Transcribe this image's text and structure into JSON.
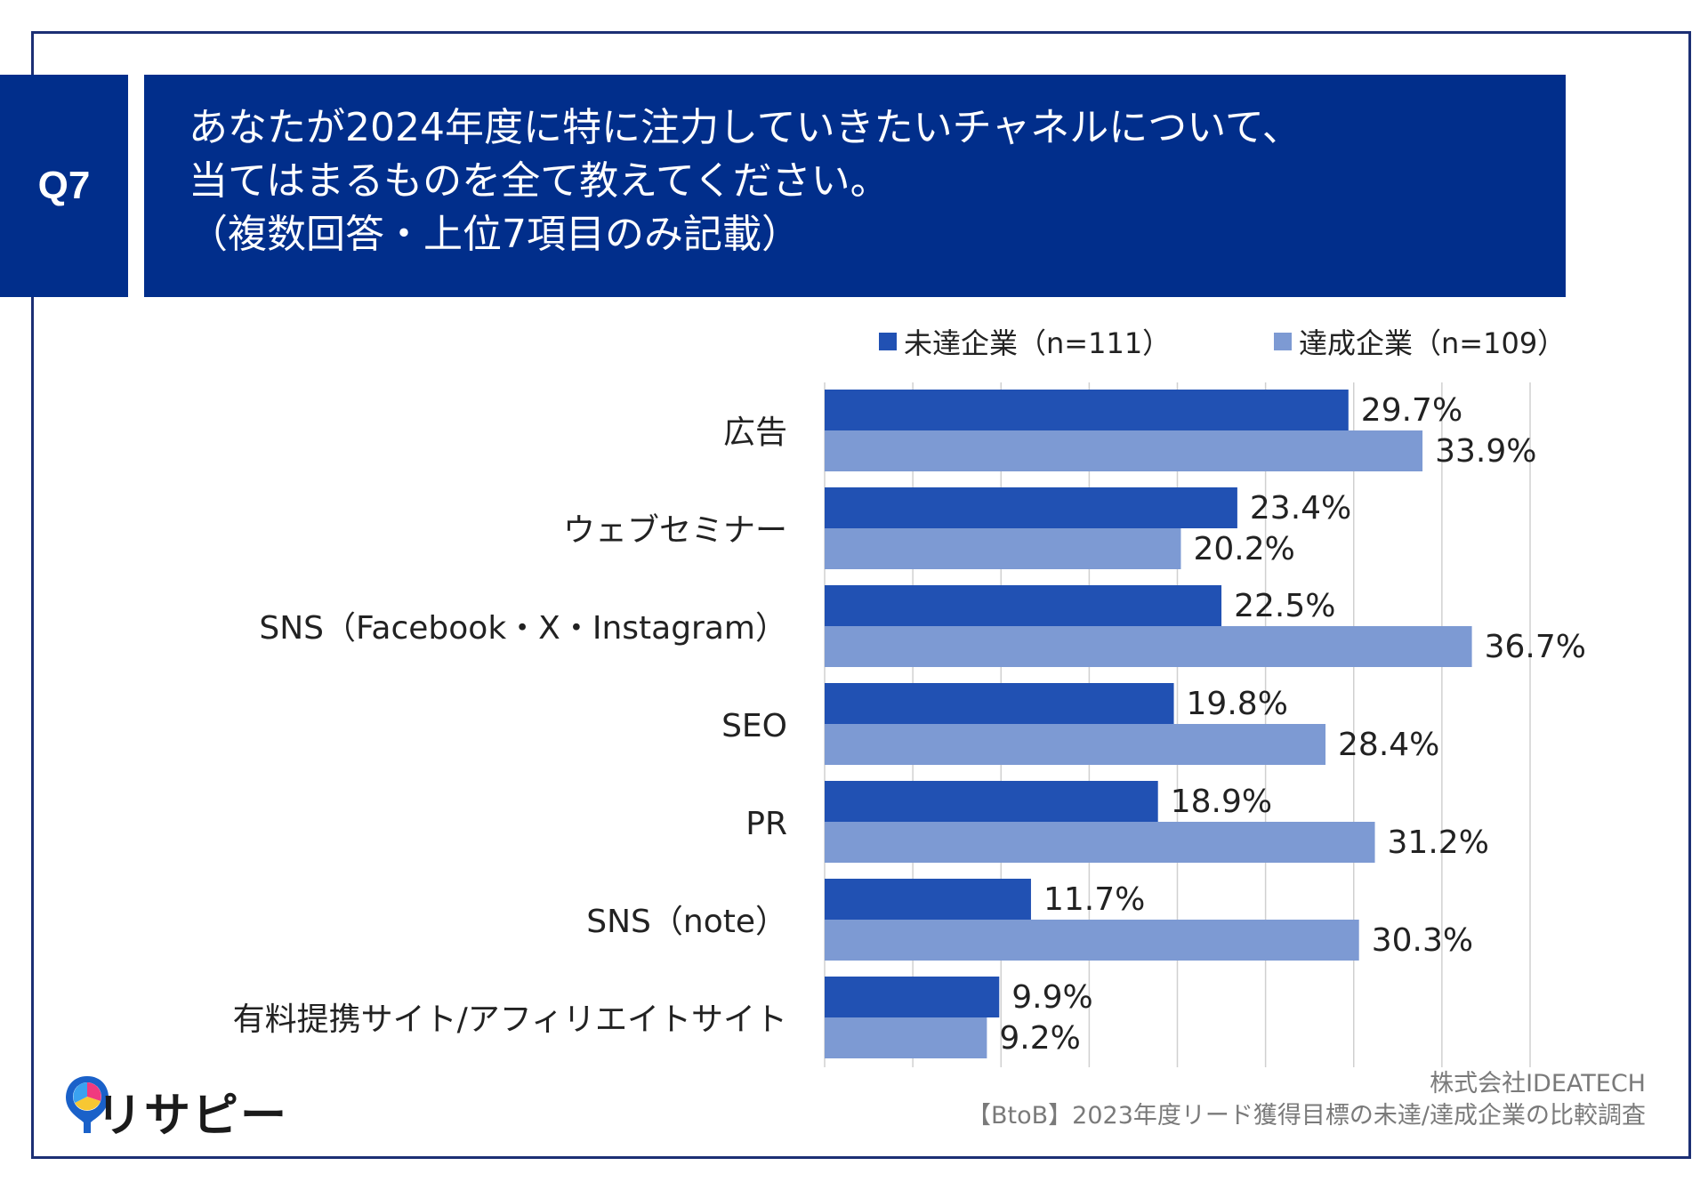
{
  "header": {
    "badge": "Q7",
    "lines": [
      "あなたが2024年度に特に注力していきたいチャネルについて、",
      "当てはまるものを全て教えてください。",
      "（複数回答・上位7項目のみ記載）"
    ]
  },
  "colors": {
    "header_bg": "#012e8b",
    "series_unachieved": "#2151b3",
    "series_achieved": "#7d9ad3",
    "grid": "#d0d0d0"
  },
  "chart_data": {
    "type": "bar",
    "orientation": "horizontal",
    "unit": "%",
    "categories": [
      "広告",
      "ウェブセミナー",
      "SNS（Facebook・X・Instagram）",
      "SEO",
      "PR",
      "SNS（note）",
      "有料提携サイト/アフィリエイトサイト"
    ],
    "series": [
      {
        "name": "未達企業（n=111）",
        "values": [
          29.7,
          23.4,
          22.5,
          19.8,
          18.9,
          11.7,
          9.9
        ]
      },
      {
        "name": "達成企業（n=109）",
        "values": [
          33.9,
          20.2,
          36.7,
          28.4,
          31.2,
          30.3,
          9.2
        ]
      }
    ],
    "xlim": [
      0,
      40
    ],
    "grid_step": 5,
    "grid": true,
    "legend_position": "top-right"
  },
  "footer": {
    "company": "株式会社IDEATECH",
    "survey": "【BtoB】2023年度リード獲得目標の未達/達成企業の比較調査"
  },
  "logo": {
    "text": "リサピー",
    "icon": "map-pin-logo-icon"
  }
}
